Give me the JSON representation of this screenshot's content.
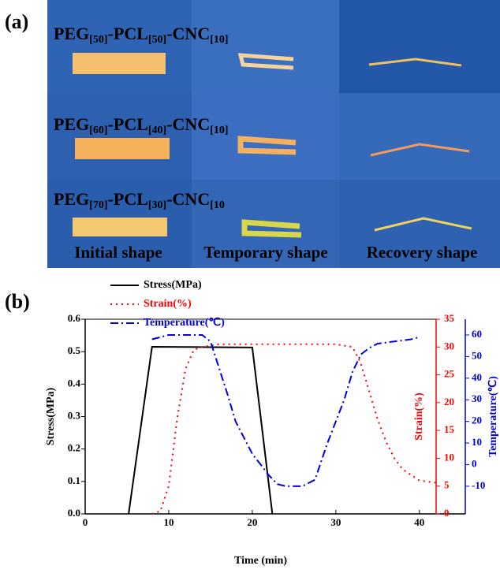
{
  "panel_a": {
    "label": "(a)",
    "rows": [
      [
        "PEG",
        "[50]",
        "-PCL",
        "[50]",
        "-CNC",
        "[10]"
      ],
      [
        "PEG",
        "[60]",
        "-PCL",
        "[40]",
        "-CNC",
        "[10]"
      ],
      [
        "PEG",
        "[70]",
        "-PCL",
        "[30]",
        "-CNC",
        "[10"
      ]
    ],
    "captions": [
      "Initial shape",
      "Temporary shape",
      "Recovery shape"
    ]
  },
  "panel_b_label": "(b)",
  "chart_data": {
    "type": "line",
    "x_label": "Time (min)",
    "y_label": "Stress(MPa)",
    "y2_label": "Strain(%)",
    "y3_label": "Temperature(℃)",
    "xlim": [
      0,
      42
    ],
    "xticks": [
      0,
      10,
      20,
      30,
      40
    ],
    "ylim": [
      0,
      0.6
    ],
    "yticks": [
      {
        "value": 0,
        "label": "0.0"
      },
      0.1,
      0.2,
      0.3,
      0.4,
      0.5,
      0.6
    ],
    "y2lim": [
      0,
      35
    ],
    "y2ticks": [
      0,
      5,
      10,
      15,
      20,
      25,
      30,
      35
    ],
    "y3lim": [
      -22.8,
      67.3
    ],
    "y3ticks": [
      -10,
      0,
      10,
      20,
      30,
      40,
      50,
      60
    ],
    "series": [
      {
        "name": "Stress(MPa)",
        "color": "#000000",
        "dash": "solid",
        "x": [
          5.2,
          8,
          20,
          22.4
        ],
        "values": [
          0,
          0.515,
          0.513,
          0
        ]
      },
      {
        "name": "Strain(%)",
        "color": "#ff0000",
        "dash": "dot",
        "axis": "y2",
        "x": [
          8,
          9,
          10,
          11,
          12,
          13,
          14,
          16,
          20,
          25,
          30,
          32,
          33,
          34,
          35,
          36,
          37,
          38,
          39,
          40,
          41,
          42
        ],
        "values": [
          0,
          0.5,
          5,
          17,
          26,
          29.5,
          30,
          30.5,
          30.5,
          30.5,
          30.5,
          30,
          27,
          22,
          17,
          13,
          10,
          8,
          7,
          6,
          5.8,
          5.6
        ]
      },
      {
        "name": "Temperature(℃)",
        "color": "#0000dd",
        "dash": "dashdot",
        "axis": "y3",
        "x": [
          8,
          10,
          14,
          15,
          16,
          17,
          18,
          20,
          22,
          23,
          24,
          26,
          27.5,
          29,
          31,
          32,
          33,
          34,
          35,
          37,
          39,
          40
        ],
        "values": [
          58,
          60,
          60,
          57,
          45,
          33,
          20,
          5,
          -5,
          -9,
          -10,
          -10,
          -7,
          10,
          30,
          43,
          51,
          54,
          56,
          57,
          58,
          59
        ]
      }
    ]
  }
}
